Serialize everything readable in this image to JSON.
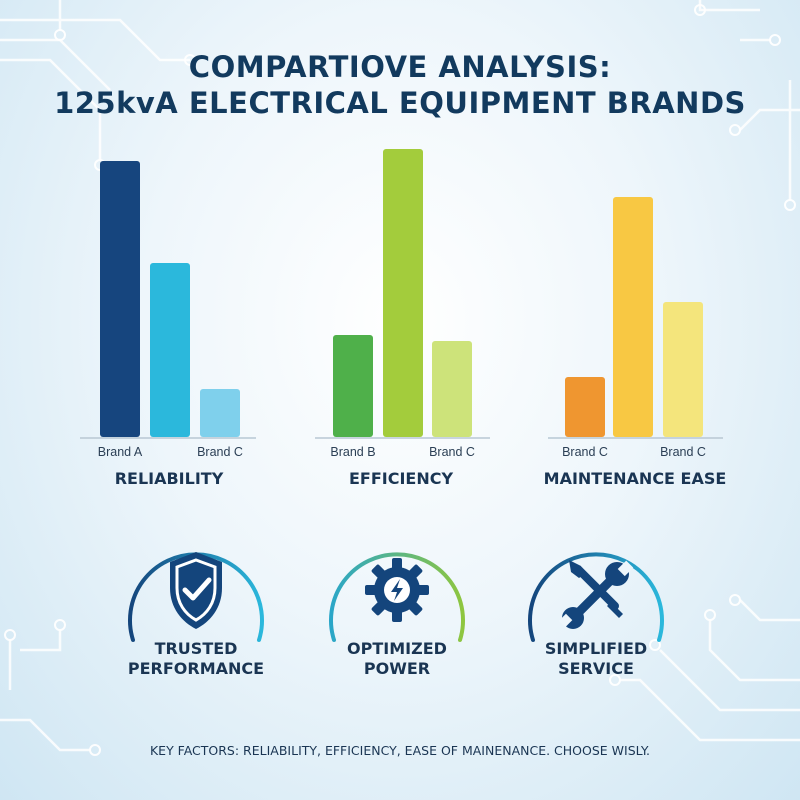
{
  "title_line1": "COMPARTIOVE ANALYSIS:",
  "title_line2": "125kvA ELECTRICAL EQUIPMENT BRANDS",
  "chart_data": [
    {
      "type": "bar",
      "title": "RELIABILITY",
      "categories": [
        "Brand A",
        "",
        "Brand C"
      ],
      "values": [
        92,
        58,
        16
      ],
      "ylim": [
        0,
        100
      ],
      "colors": [
        "#16457e",
        "#2bb8dc",
        "#7fd0ec"
      ]
    },
    {
      "type": "bar",
      "title": "EFFICIENCY",
      "categories": [
        "Brand B",
        "",
        "Brand C"
      ],
      "values": [
        34,
        96,
        32
      ],
      "ylim": [
        0,
        100
      ],
      "colors": [
        "#4fb04a",
        "#a3cc3c",
        "#cde37a"
      ]
    },
    {
      "type": "bar",
      "title": "MAINTENANCE EASE",
      "categories": [
        "Brand C",
        "",
        "Brand C"
      ],
      "values": [
        20,
        80,
        45
      ],
      "ylim": [
        0,
        100
      ],
      "colors": [
        "#ef9630",
        "#f8c843",
        "#f4e57c"
      ]
    }
  ],
  "features": [
    {
      "line1": "TRUSTED",
      "line2": "PERFORMANCE",
      "icon": "shield-check-icon",
      "arc_colors": [
        "#14457c",
        "#2bb8dc"
      ]
    },
    {
      "line1": "OPTIMIZED",
      "line2": "POWER",
      "icon": "gear-lightning-icon",
      "arc_colors": [
        "#2aa6c8",
        "#8ec63f"
      ]
    },
    {
      "line1": "SIMPLIFIED",
      "line2": "SERVICE",
      "icon": "wrench-screwdriver-icon",
      "arc_colors": [
        "#14457c",
        "#2bb8dc"
      ]
    }
  ],
  "footer": "KEY FACTORS: RELIABILITY, EFFICIENCY, EASE OF MAINENANCE. CHOOSE WISLY."
}
